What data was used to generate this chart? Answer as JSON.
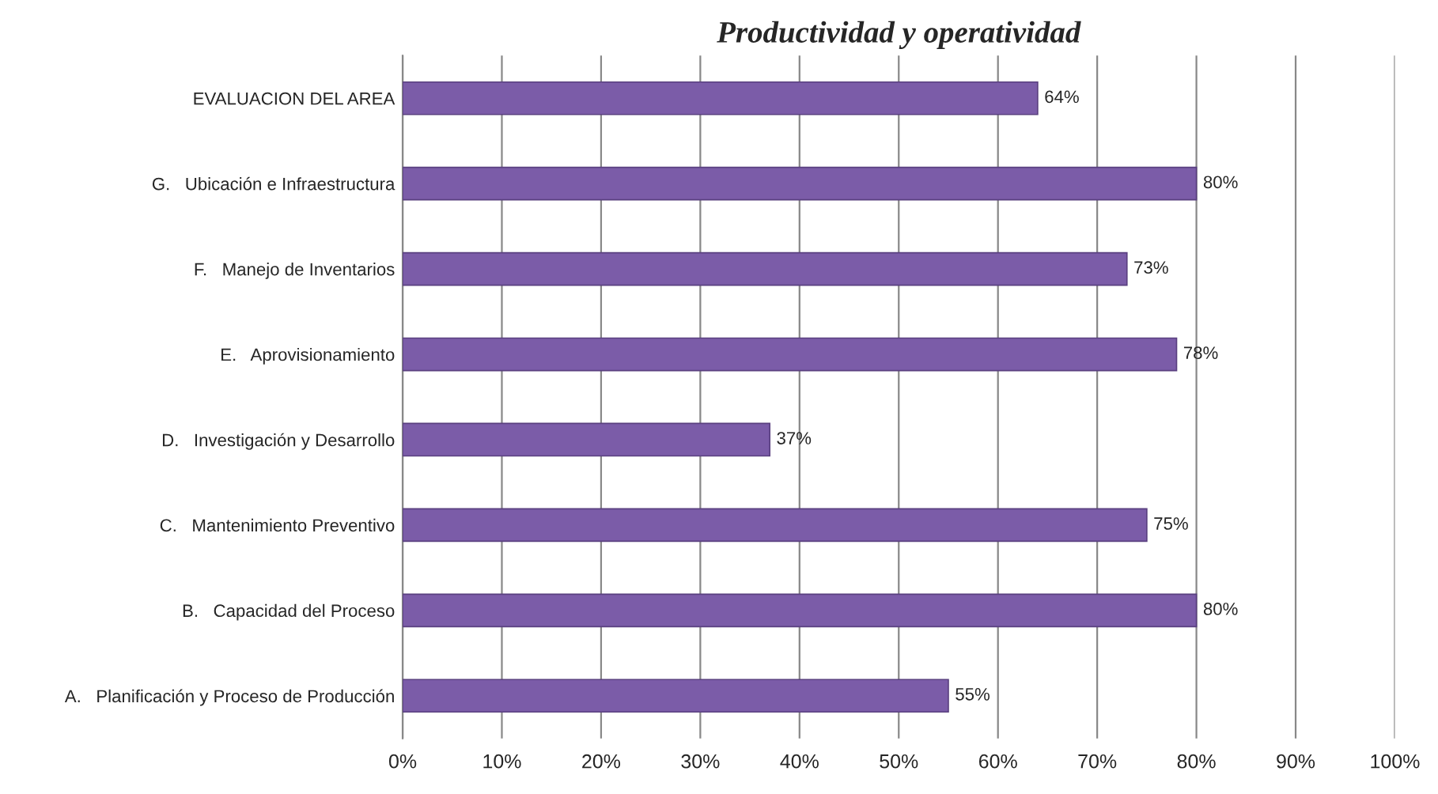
{
  "chart_data": {
    "type": "bar",
    "orientation": "horizontal",
    "title": "Productividad y operatividad",
    "categories": [
      "EVALUACION DEL AREA",
      "G.   Ubicación e Infraestructura",
      "F.   Manejo de Inventarios",
      "E.   Aprovisionamiento",
      "D.   Investigación y Desarrollo",
      "C.   Mantenimiento Preventivo",
      "B.   Capacidad del Proceso",
      "A.   Planificación y Proceso de Producción"
    ],
    "values": [
      64,
      80,
      73,
      78,
      37,
      75,
      80,
      55
    ],
    "value_labels": [
      "64%",
      "80%",
      "73%",
      "78%",
      "37%",
      "75%",
      "80%",
      "55%"
    ],
    "color": "#7b5ca8",
    "xlim": [
      0,
      100
    ],
    "xticks": [
      {
        "value": 0,
        "label": "0%"
      },
      {
        "value": 10,
        "label": "10%"
      },
      {
        "value": 20,
        "label": "20%"
      },
      {
        "value": 30,
        "label": "30%"
      },
      {
        "value": 40,
        "label": "40%"
      },
      {
        "value": 50,
        "label": "50%"
      },
      {
        "value": 60,
        "label": "60%"
      },
      {
        "value": 70,
        "label": "70%"
      },
      {
        "value": 80,
        "label": "80%"
      },
      {
        "value": 90,
        "label": "90%"
      },
      {
        "value": 100,
        "label": "100%"
      }
    ],
    "grid": "x",
    "legend": false
  }
}
